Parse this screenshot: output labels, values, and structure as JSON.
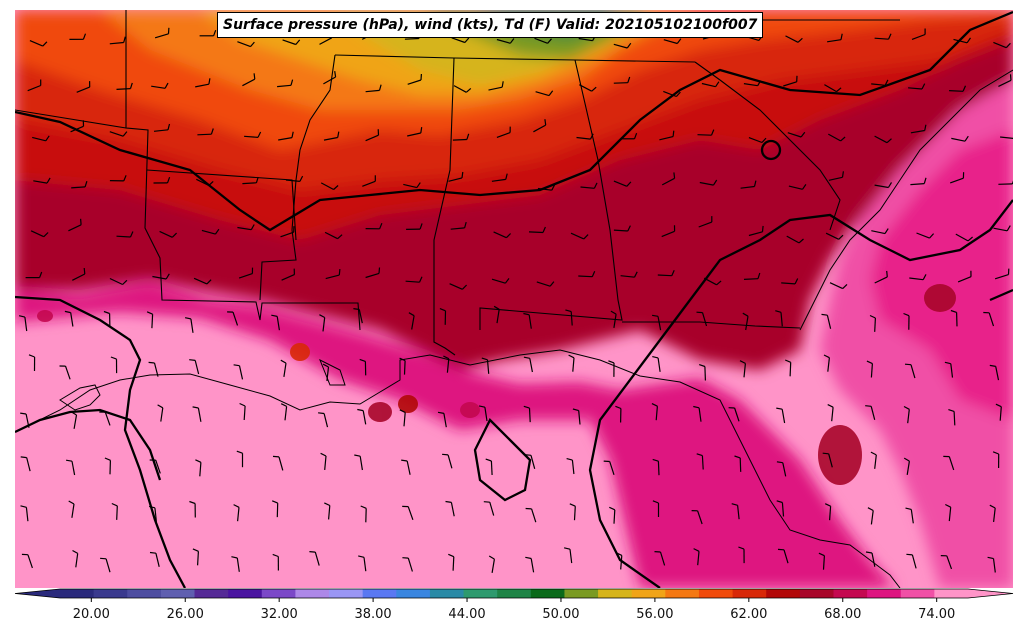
{
  "title": "Surface pressure (hPa), wind (kts), Td (F) Valid: 202105102100f007",
  "colorbar": {
    "ticks": [
      "20.00",
      "26.00",
      "32.00",
      "38.00",
      "44.00",
      "50.00",
      "56.00",
      "62.00",
      "68.00",
      "74.00"
    ],
    "min": 18,
    "max": 76,
    "colors": [
      "#2a2a7c",
      "#3a3a8e",
      "#4d4da0",
      "#5f5fb0",
      "#552a96",
      "#4a14a0",
      "#7b48c8",
      "#ad88e8",
      "#9a96f4",
      "#5a78f2",
      "#3a86e0",
      "#2a8aa6",
      "#2e9a6e",
      "#1e8446",
      "#0a6a1a",
      "#7a9a22",
      "#d6b41a",
      "#f0a418",
      "#f47812",
      "#f04a0a",
      "#d82808",
      "#b20808",
      "#a8062a",
      "#c40850",
      "#de1480",
      "#f050a6",
      "#ff94c8"
    ]
  },
  "map": {
    "region": "Southeastern United States and Gulf of Mexico",
    "fields": [
      "dewpoint temperature (F) shaded",
      "surface pressure contours (hPa)",
      "wind barbs (kts)"
    ],
    "isobar_labels": []
  }
}
